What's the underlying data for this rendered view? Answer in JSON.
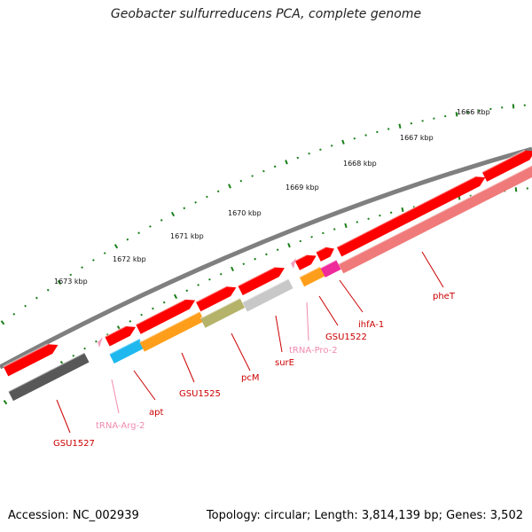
{
  "title": "Geobacter sulfurreducens PCA, complete genome",
  "footer": {
    "accession": "Accession: NC_002939",
    "stats": "Topology: circular; Length: 3,814,139 bp; Genes: 3,502"
  },
  "scale_labels": [
    "1666 kbp",
    "1667 kbp",
    "1668 kbp",
    "1669 kbp",
    "1670 kbp",
    "1671 kbp",
    "1672 kbp",
    "1673 kbp"
  ],
  "gene_labels": [
    "pheT",
    "ihfA-1",
    "GSU1522",
    "tRNA-Pro-2",
    "surE",
    "pcM",
    "GSU1525",
    "apt",
    "tRNA-Arg-2",
    "GSU1527"
  ],
  "colors": {
    "cds_strand": "#ff0000",
    "trna": "#f4a0c0",
    "label_red": "#cc0000",
    "label_pink": "#f08ab0",
    "tick": "#1a7f1a",
    "backbone": "#808080"
  }
}
